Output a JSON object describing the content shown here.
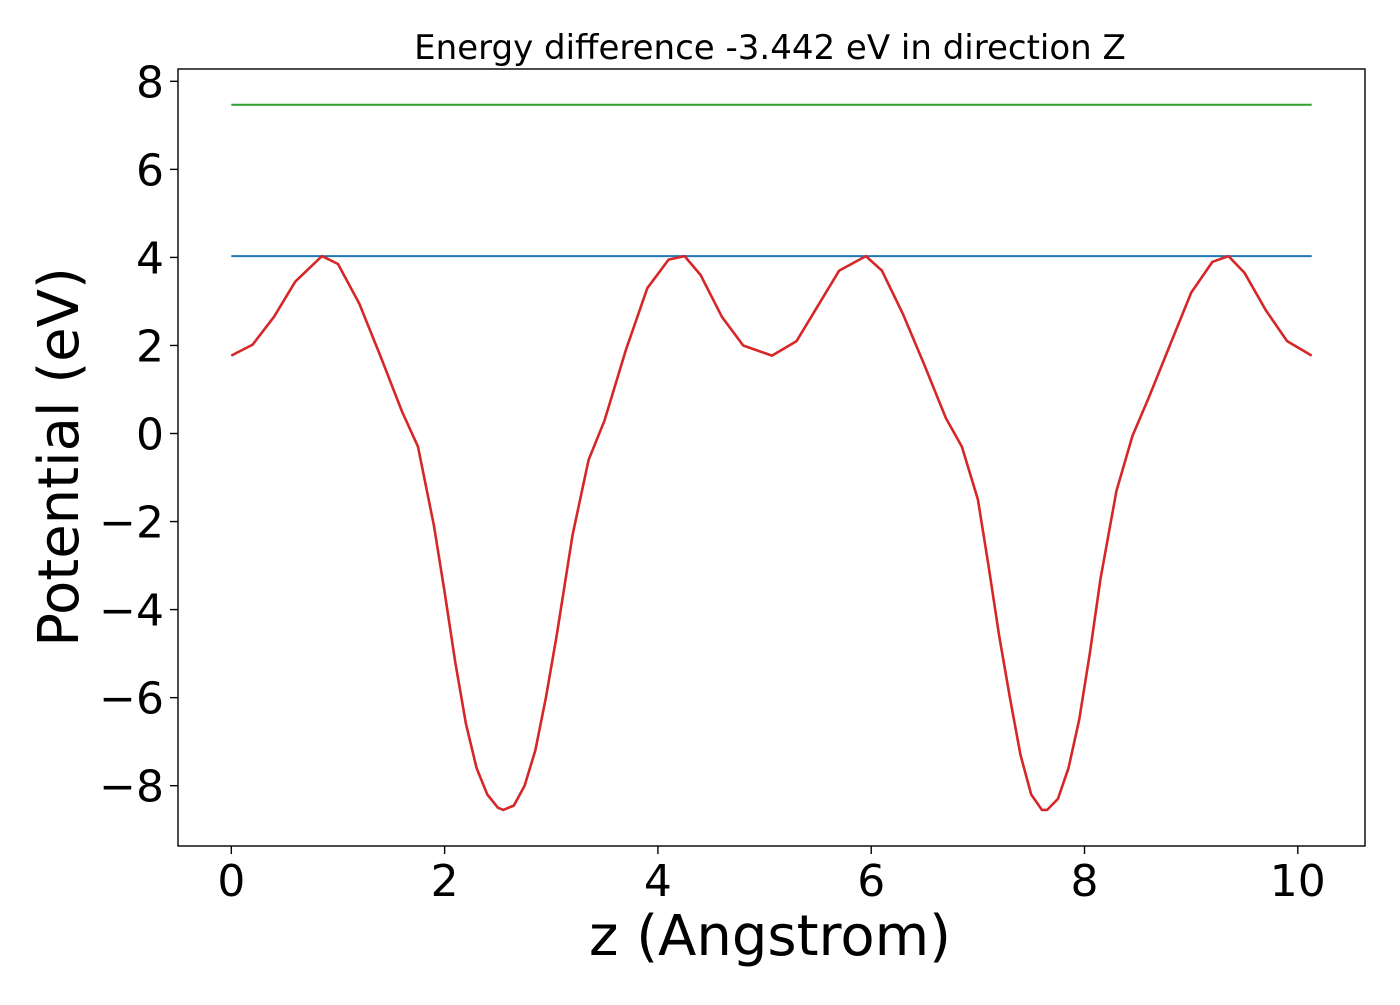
{
  "chart_data": {
    "type": "line",
    "title": "Energy difference -3.442 eV in direction Z",
    "xlabel": "z (Angstrom)",
    "ylabel": "Potential (eV)",
    "xlim": [
      -0.5,
      10.63
    ],
    "ylim": [
      -9.37,
      8.28
    ],
    "xticks": [
      0,
      2,
      4,
      6,
      8,
      10
    ],
    "xtick_labels": [
      "0",
      "2",
      "4",
      "6",
      "8",
      "10"
    ],
    "yticks": [
      -8,
      -6,
      -4,
      -2,
      0,
      2,
      4,
      6,
      8
    ],
    "ytick_labels": [
      "−8",
      "−6",
      "−4",
      "−2",
      "0",
      "2",
      "4",
      "6",
      "8"
    ],
    "grid": false,
    "series": [
      {
        "color": "#2ca02c",
        "x": [
          0,
          10.13
        ],
        "y": [
          7.47,
          7.47
        ]
      },
      {
        "color": "#1f77b4",
        "x": [
          0,
          10.13
        ],
        "y": [
          4.03,
          4.03
        ]
      },
      {
        "color": "#d62728",
        "x": [
          0,
          0.2,
          0.4,
          0.6,
          0.85,
          1.0,
          1.2,
          1.4,
          1.6,
          1.75,
          1.9,
          2.0,
          2.1,
          2.2,
          2.3,
          2.4,
          2.5,
          2.55,
          2.65,
          2.75,
          2.85,
          2.95,
          3.05,
          3.2,
          3.35,
          3.5,
          3.7,
          3.9,
          4.1,
          4.25,
          4.4,
          4.6,
          4.8,
          5.07,
          5.3,
          5.5,
          5.7,
          5.95,
          6.1,
          6.3,
          6.5,
          6.7,
          6.85,
          7.0,
          7.1,
          7.2,
          7.3,
          7.4,
          7.5,
          7.6,
          7.65,
          7.75,
          7.85,
          7.95,
          8.05,
          8.15,
          8.3,
          8.45,
          8.6,
          8.8,
          9.0,
          9.2,
          9.35,
          9.5,
          9.7,
          9.9,
          10.13
        ],
        "y": [
          1.77,
          2.02,
          2.65,
          3.45,
          4.03,
          3.85,
          2.95,
          1.75,
          0.5,
          -0.3,
          -2.1,
          -3.6,
          -5.2,
          -6.6,
          -7.6,
          -8.2,
          -8.5,
          -8.55,
          -8.45,
          -8.0,
          -7.2,
          -6.0,
          -4.6,
          -2.3,
          -0.6,
          0.3,
          1.9,
          3.3,
          3.95,
          4.03,
          3.6,
          2.65,
          2.0,
          1.77,
          2.1,
          2.9,
          3.7,
          4.03,
          3.7,
          2.7,
          1.55,
          0.35,
          -0.3,
          -1.5,
          -3.0,
          -4.6,
          -6.0,
          -7.3,
          -8.2,
          -8.55,
          -8.55,
          -8.3,
          -7.6,
          -6.5,
          -5.0,
          -3.3,
          -1.3,
          -0.05,
          0.8,
          2.0,
          3.2,
          3.9,
          4.03,
          3.65,
          2.8,
          2.1,
          1.77
        ]
      }
    ]
  }
}
